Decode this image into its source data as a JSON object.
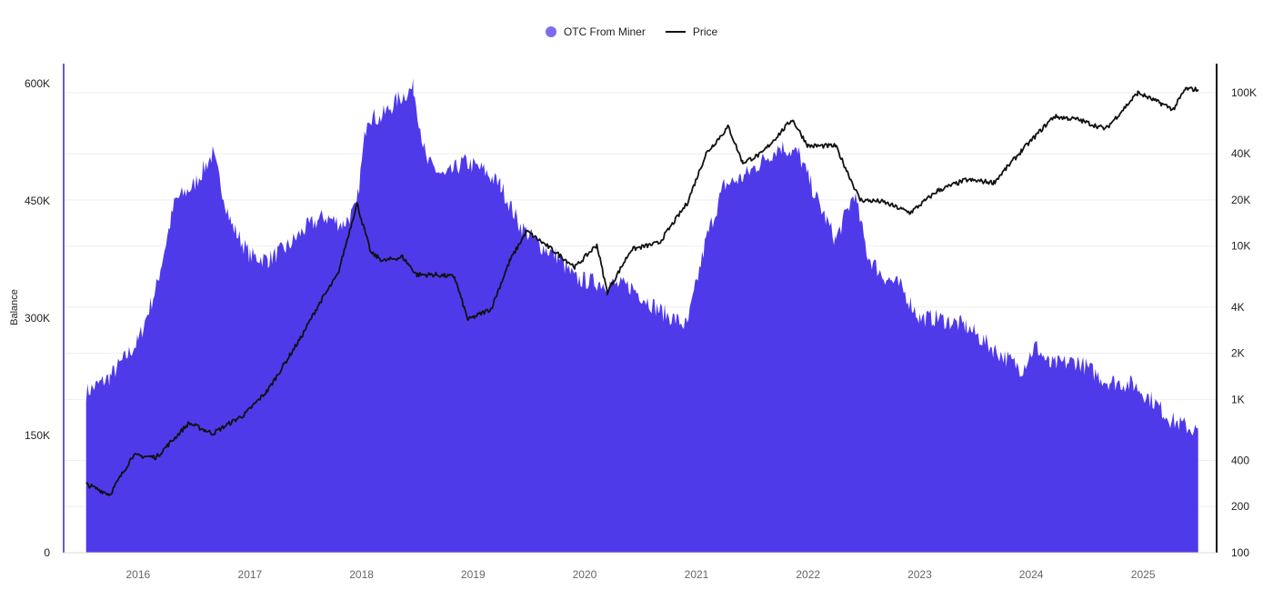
{
  "legend": {
    "area_label": "OTC From Miner",
    "line_label": "Price"
  },
  "colors": {
    "area": "#4f3aea",
    "area_legend": "#7b6cf0",
    "price": "#111111",
    "left_axis": "#6a5ad6",
    "grid": "#eeeeee"
  },
  "chart_data": {
    "type": "area",
    "title": "",
    "xlabel": "",
    "ylabel_left": "Balance",
    "ylabel_right": "",
    "x_range": [
      "2015-07-01",
      "2025-07-01"
    ],
    "x_ticks": [
      "2016",
      "2017",
      "2018",
      "2019",
      "2020",
      "2021",
      "2022",
      "2023",
      "2024",
      "2025"
    ],
    "y_left": {
      "min": 0,
      "max": 600000,
      "ticks": [
        0,
        150000,
        300000,
        450000,
        600000
      ],
      "tick_labels": [
        "0",
        "150K",
        "300K",
        "450K",
        "600K"
      ]
    },
    "y_right": {
      "scale": "log",
      "min": 100,
      "max": 100000,
      "ticks": [
        100,
        200,
        400,
        1000,
        2000,
        4000,
        10000,
        20000,
        40000,
        100000
      ],
      "tick_labels": [
        "100",
        "200",
        "400",
        "1K",
        "2K",
        "4K",
        "10K",
        "20K",
        "40K",
        "100K"
      ]
    },
    "grid": true,
    "legend_position": "top-center",
    "series": [
      {
        "name": "OTC From Miner",
        "type": "area",
        "axis": "left",
        "points": [
          [
            "2015-07-15",
            205000
          ],
          [
            "2015-10-01",
            225000
          ],
          [
            "2016-01-01",
            270000
          ],
          [
            "2016-03-01",
            340000
          ],
          [
            "2016-05-01",
            450000
          ],
          [
            "2016-07-01",
            470000
          ],
          [
            "2016-09-01",
            510000
          ],
          [
            "2016-11-01",
            420000
          ],
          [
            "2017-01-01",
            380000
          ],
          [
            "2017-03-01",
            375000
          ],
          [
            "2017-05-01",
            390000
          ],
          [
            "2017-07-01",
            415000
          ],
          [
            "2017-09-01",
            430000
          ],
          [
            "2017-11-01",
            420000
          ],
          [
            "2017-12-15",
            440000
          ],
          [
            "2018-01-20",
            560000
          ],
          [
            "2018-03-01",
            555000
          ],
          [
            "2018-05-01",
            580000
          ],
          [
            "2018-06-20",
            595000
          ],
          [
            "2018-08-01",
            500000
          ],
          [
            "2018-10-01",
            480000
          ],
          [
            "2018-12-01",
            500000
          ],
          [
            "2019-02-01",
            490000
          ],
          [
            "2019-04-01",
            470000
          ],
          [
            "2019-06-01",
            420000
          ],
          [
            "2019-08-01",
            395000
          ],
          [
            "2019-10-01",
            380000
          ],
          [
            "2019-12-01",
            350000
          ],
          [
            "2020-03-01",
            345000
          ],
          [
            "2020-06-01",
            340000
          ],
          [
            "2020-09-01",
            310000
          ],
          [
            "2020-12-01",
            290000
          ],
          [
            "2021-02-01",
            400000
          ],
          [
            "2021-04-01",
            470000
          ],
          [
            "2021-06-01",
            480000
          ],
          [
            "2021-08-01",
            500000
          ],
          [
            "2021-10-01",
            520000
          ],
          [
            "2021-12-01",
            510000
          ],
          [
            "2022-02-01",
            450000
          ],
          [
            "2022-04-01",
            400000
          ],
          [
            "2022-06-01",
            460000
          ],
          [
            "2022-07-15",
            380000
          ],
          [
            "2022-09-01",
            355000
          ],
          [
            "2022-11-01",
            340000
          ],
          [
            "2023-01-01",
            300000
          ],
          [
            "2023-03-01",
            300000
          ],
          [
            "2023-06-01",
            290000
          ],
          [
            "2023-09-01",
            260000
          ],
          [
            "2023-12-01",
            235000
          ],
          [
            "2024-01-15",
            265000
          ],
          [
            "2024-03-01",
            240000
          ],
          [
            "2024-06-01",
            245000
          ],
          [
            "2024-09-01",
            220000
          ],
          [
            "2024-12-01",
            215000
          ],
          [
            "2025-02-01",
            195000
          ],
          [
            "2025-04-01",
            170000
          ],
          [
            "2025-06-30",
            155000
          ]
        ]
      },
      {
        "name": "Price",
        "type": "line",
        "axis": "right",
        "scale": "log",
        "points": [
          [
            "2015-07-15",
            280
          ],
          [
            "2015-10-01",
            240
          ],
          [
            "2015-12-15",
            430
          ],
          [
            "2016-03-01",
            420
          ],
          [
            "2016-06-15",
            700
          ],
          [
            "2016-09-01",
            600
          ],
          [
            "2016-12-15",
            800
          ],
          [
            "2017-03-01",
            1150
          ],
          [
            "2017-06-15",
            2500
          ],
          [
            "2017-08-15",
            4200
          ],
          [
            "2017-10-15",
            6500
          ],
          [
            "2017-12-17",
            19000
          ],
          [
            "2018-02-01",
            9000
          ],
          [
            "2018-03-15",
            8000
          ],
          [
            "2018-05-15",
            8500
          ],
          [
            "2018-07-01",
            6500
          ],
          [
            "2018-09-01",
            6500
          ],
          [
            "2018-11-01",
            6300
          ],
          [
            "2018-12-15",
            3300
          ],
          [
            "2019-03-01",
            3900
          ],
          [
            "2019-05-01",
            8000
          ],
          [
            "2019-06-25",
            12500
          ],
          [
            "2019-09-01",
            10000
          ],
          [
            "2019-12-01",
            7300
          ],
          [
            "2020-02-10",
            10200
          ],
          [
            "2020-03-15",
            5000
          ],
          [
            "2020-06-01",
            9500
          ],
          [
            "2020-09-01",
            10500
          ],
          [
            "2020-12-01",
            19000
          ],
          [
            "2021-02-01",
            40000
          ],
          [
            "2021-04-15",
            60000
          ],
          [
            "2021-06-01",
            35000
          ],
          [
            "2021-08-01",
            40000
          ],
          [
            "2021-11-10",
            67000
          ],
          [
            "2022-01-01",
            45000
          ],
          [
            "2022-04-01",
            45000
          ],
          [
            "2022-06-20",
            20000
          ],
          [
            "2022-09-01",
            19500
          ],
          [
            "2022-12-01",
            16500
          ],
          [
            "2023-03-01",
            23000
          ],
          [
            "2023-06-01",
            27000
          ],
          [
            "2023-09-01",
            26000
          ],
          [
            "2023-12-01",
            42000
          ],
          [
            "2024-03-15",
            70000
          ],
          [
            "2024-06-01",
            67000
          ],
          [
            "2024-09-01",
            58000
          ],
          [
            "2024-12-15",
            100000
          ],
          [
            "2025-03-01",
            85000
          ],
          [
            "2025-04-10",
            78000
          ],
          [
            "2025-05-20",
            106000
          ],
          [
            "2025-06-30",
            105000
          ]
        ]
      }
    ]
  }
}
